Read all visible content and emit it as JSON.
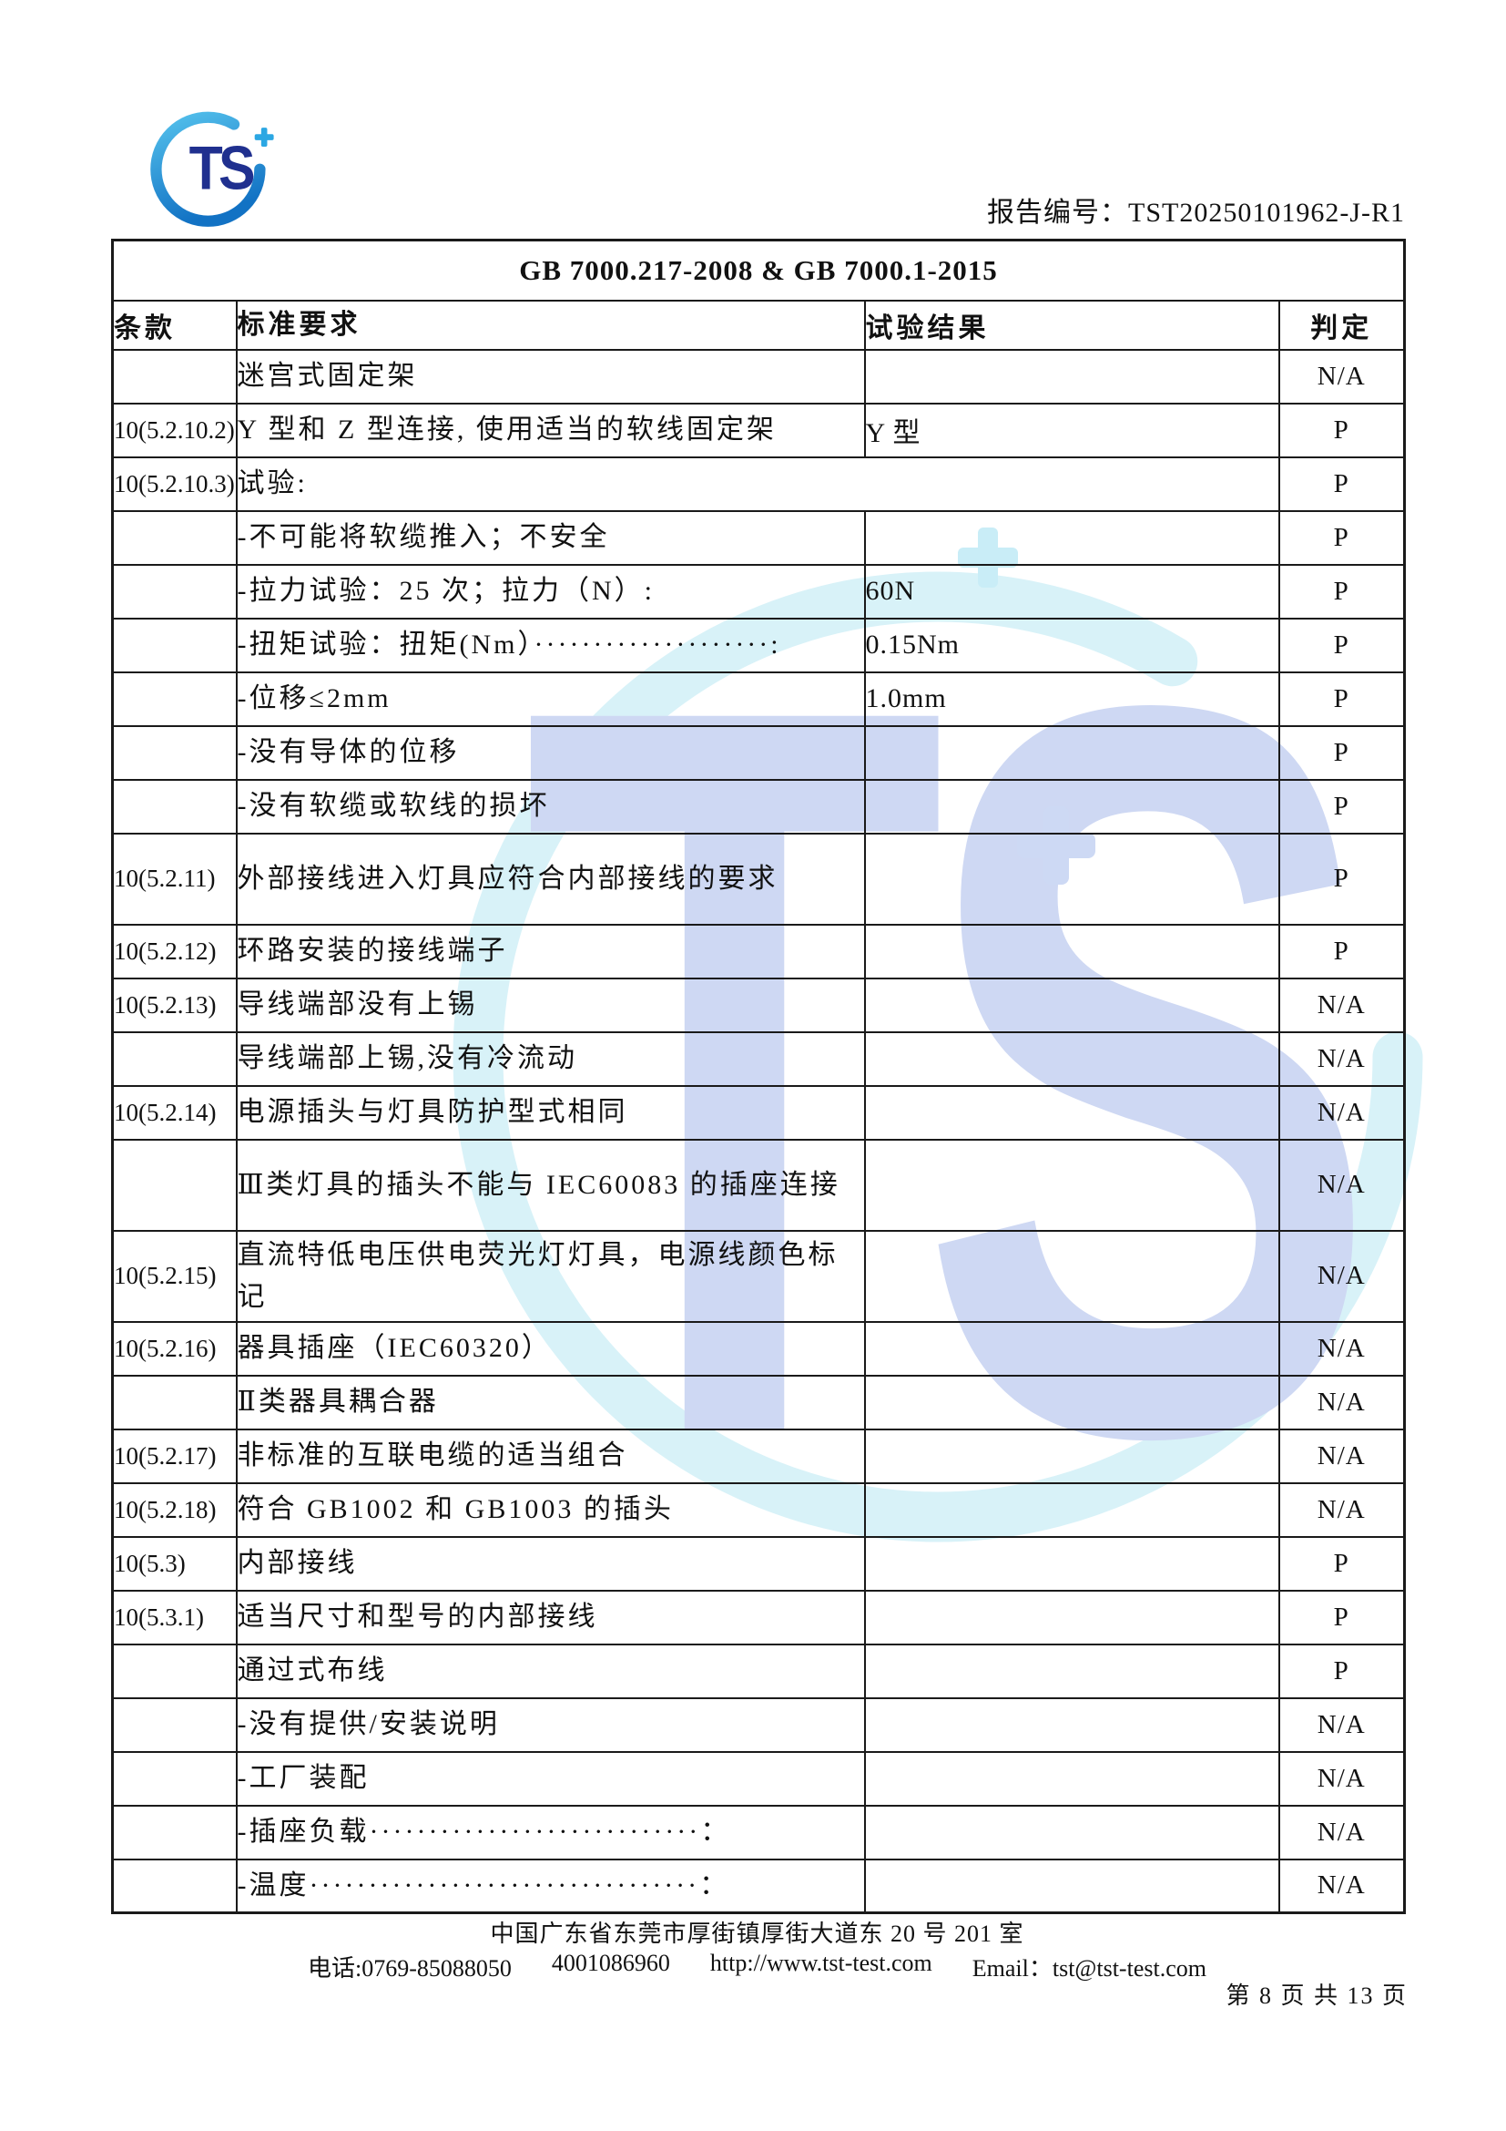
{
  "header": {
    "report_no": "报告编号：TST20250101962-J-R1",
    "logo_letters": "TS"
  },
  "table": {
    "title": "GB 7000.217-2008 & GB 7000.1-2015",
    "columns": [
      "条款",
      "标准要求",
      "试验结果",
      "判定"
    ],
    "rows": [
      {
        "clause": "",
        "requirement": "迷宫式固定架",
        "result": "",
        "verdict": "N/A"
      },
      {
        "clause": "10(5.2.10.2)",
        "requirement": "Y 型和 Z 型连接, 使用适当的软线固定架",
        "result": "Y 型",
        "verdict": "P"
      },
      {
        "clause": "10(5.2.10.3)",
        "requirement": "试验:",
        "merged": true,
        "verdict": "P"
      },
      {
        "clause": "",
        "requirement": "-不可能将软缆推入；不安全",
        "result": "",
        "verdict": "P"
      },
      {
        "clause": "",
        "requirement": "-拉力试验：25 次；拉力（N）:",
        "result": "60N",
        "verdict": "P"
      },
      {
        "clause": "",
        "requirement": "-扭矩试验：扭矩(Nm）····················:",
        "result": "0.15Nm",
        "verdict": "P"
      },
      {
        "clause": "",
        "requirement": "-位移≤2mm",
        "result": "1.0mm",
        "verdict": "P"
      },
      {
        "clause": "",
        "requirement": "-没有导体的位移",
        "result": "",
        "verdict": "P"
      },
      {
        "clause": "",
        "requirement": "-没有软缆或软线的损坏",
        "result": "",
        "verdict": "P"
      },
      {
        "clause": "10(5.2.11)",
        "requirement": "外部接线进入灯具应符合内部接线的要求",
        "result": "",
        "verdict": "P",
        "tall": true
      },
      {
        "clause": "10(5.2.12)",
        "requirement": "环路安装的接线端子",
        "result": "",
        "verdict": "P"
      },
      {
        "clause": "10(5.2.13)",
        "requirement": "导线端部没有上锡",
        "result": "",
        "verdict": "N/A"
      },
      {
        "clause": "",
        "requirement": "导线端部上锡,没有冷流动",
        "result": "",
        "verdict": "N/A"
      },
      {
        "clause": "10(5.2.14)",
        "requirement": "电源插头与灯具防护型式相同",
        "result": "",
        "verdict": "N/A"
      },
      {
        "clause": "",
        "requirement": "Ⅲ类灯具的插头不能与 IEC60083 的插座连接",
        "result": "",
        "verdict": "N/A",
        "tall": true
      },
      {
        "clause": "10(5.2.15)",
        "requirement": "直流特低电压供电荧光灯灯具，电源线颜色标记",
        "result": "",
        "verdict": "N/A",
        "tall": true
      },
      {
        "clause": "10(5.2.16)",
        "requirement": "器具插座（IEC60320）",
        "result": "",
        "verdict": "N/A"
      },
      {
        "clause": "",
        "requirement": "Ⅱ类器具耦合器",
        "result": "",
        "verdict": "N/A"
      },
      {
        "clause": "10(5.2.17)",
        "requirement": "非标准的互联电缆的适当组合",
        "result": "",
        "verdict": "N/A"
      },
      {
        "clause": "10(5.2.18)",
        "requirement": "符合 GB1002  和 GB1003  的插头",
        "result": "",
        "verdict": "N/A"
      },
      {
        "clause": "10(5.3)",
        "requirement": "内部接线",
        "result": "",
        "verdict": "P"
      },
      {
        "clause": "10(5.3.1)",
        "requirement": "适当尺寸和型号的内部接线",
        "result": "",
        "verdict": "P"
      },
      {
        "clause": "",
        "requirement": "通过式布线",
        "result": "",
        "verdict": "P"
      },
      {
        "clause": "",
        "requirement": "-没有提供/安装说明",
        "result": "",
        "verdict": "N/A"
      },
      {
        "clause": "",
        "requirement": "-工厂装配",
        "result": "",
        "verdict": "N/A"
      },
      {
        "clause": "",
        "requirement": "-插座负载····························：",
        "result": "",
        "verdict": "N/A"
      },
      {
        "clause": "",
        "requirement": "-温度·································：",
        "result": "",
        "verdict": "N/A"
      }
    ]
  },
  "footer": {
    "address": "中国广东省东莞市厚街镇厚街大道东 20 号 201 室",
    "phone": "电话:0769-85088050",
    "hotline": "4001086960",
    "website": "http://www.tst-test.com",
    "email": "Email：tst@tst-test.com",
    "page_info": "第 8 页 共 13 页"
  },
  "colors": {
    "logo_navy": "#20308f",
    "logo_blue_light": "#54c1ec",
    "logo_blue_deep": "#1272c4",
    "plus_blue": "#2ba7e3",
    "watermark_cyan": "#d8f2f8",
    "watermark_periwinkle": "#ced8f3",
    "border_black": "#1a1a1a"
  }
}
